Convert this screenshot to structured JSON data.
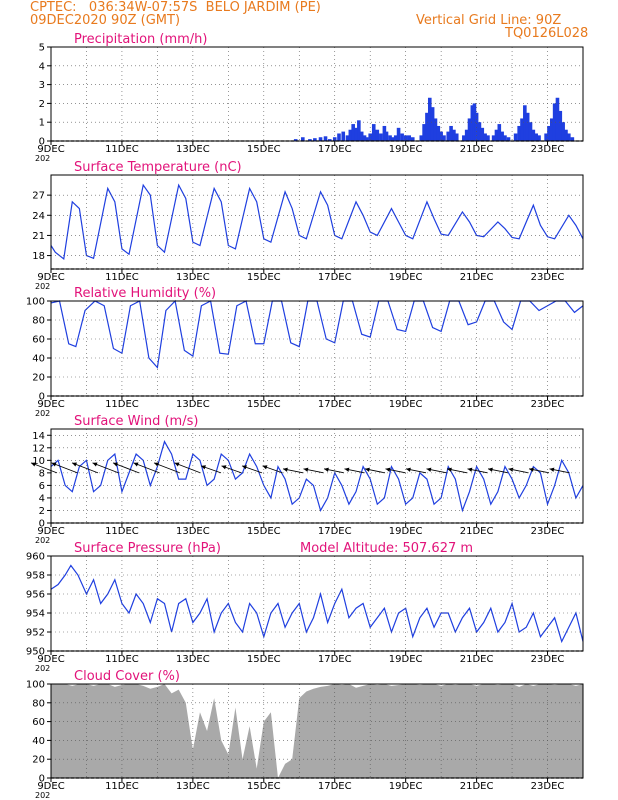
{
  "header": {
    "line1_left": "CPTEC:   036:34W-07:57S  BELO JARDIM (PE)",
    "line2_left": "09DEC2020 90Z (GMT)",
    "line1_right": "Vertical Grid Line: 90Z",
    "line2_right": "TQ0126L028"
  },
  "colors": {
    "header": "#e87a1e",
    "title": "#e2137a",
    "line": "#1f3fe0",
    "bar": "#1f3fe0",
    "cloud": "#a9a9a9"
  },
  "x_labels": [
    "9DEC",
    "11DEC",
    "13DEC",
    "15DEC",
    "17DEC",
    "19DEC",
    "21DEC",
    "23DEC"
  ],
  "x_stub": "202",
  "chart_data": [
    {
      "id": "precip",
      "type": "bar",
      "title": "Precipitation  (mm/h)",
      "ylim": [
        0,
        5
      ],
      "yticks": [
        0,
        1,
        2,
        3,
        4,
        5
      ],
      "xlim": [
        0,
        7.5
      ],
      "points": [
        [
          3.45,
          0.1
        ],
        [
          3.55,
          0.2
        ],
        [
          3.65,
          0.1
        ],
        [
          3.72,
          0.15
        ],
        [
          3.8,
          0.2
        ],
        [
          3.87,
          0.25
        ],
        [
          3.93,
          0.1
        ],
        [
          4.0,
          0.2
        ],
        [
          4.06,
          0.4
        ],
        [
          4.12,
          0.5
        ],
        [
          4.18,
          0.3
        ],
        [
          4.22,
          0.6
        ],
        [
          4.26,
          0.9
        ],
        [
          4.3,
          0.7
        ],
        [
          4.34,
          1.1
        ],
        [
          4.38,
          0.5
        ],
        [
          4.42,
          0.3
        ],
        [
          4.45,
          0.2
        ],
        [
          4.5,
          0.4
        ],
        [
          4.55,
          0.9
        ],
        [
          4.6,
          0.6
        ],
        [
          4.65,
          0.4
        ],
        [
          4.7,
          0.8
        ],
        [
          4.73,
          0.5
        ],
        [
          4.78,
          0.3
        ],
        [
          4.82,
          0.2
        ],
        [
          4.86,
          0.3
        ],
        [
          4.9,
          0.7
        ],
        [
          4.95,
          0.4
        ],
        [
          5.0,
          0.3
        ],
        [
          5.05,
          0.3
        ],
        [
          5.1,
          0.2
        ],
        [
          5.22,
          0.3
        ],
        [
          5.26,
          0.9
        ],
        [
          5.3,
          1.5
        ],
        [
          5.34,
          2.3
        ],
        [
          5.38,
          1.8
        ],
        [
          5.42,
          1.2
        ],
        [
          5.46,
          0.8
        ],
        [
          5.5,
          0.5
        ],
        [
          5.54,
          0.3
        ],
        [
          5.6,
          0.5
        ],
        [
          5.64,
          0.8
        ],
        [
          5.68,
          0.6
        ],
        [
          5.72,
          0.4
        ],
        [
          5.82,
          0.3
        ],
        [
          5.86,
          0.6
        ],
        [
          5.9,
          1.2
        ],
        [
          5.94,
          1.9
        ],
        [
          5.97,
          2.0
        ],
        [
          6.0,
          1.5
        ],
        [
          6.04,
          1.0
        ],
        [
          6.08,
          0.7
        ],
        [
          6.12,
          0.4
        ],
        [
          6.16,
          0.3
        ],
        [
          6.24,
          0.3
        ],
        [
          6.28,
          0.6
        ],
        [
          6.32,
          0.9
        ],
        [
          6.36,
          0.5
        ],
        [
          6.4,
          0.3
        ],
        [
          6.45,
          0.2
        ],
        [
          6.55,
          0.4
        ],
        [
          6.6,
          0.8
        ],
        [
          6.64,
          1.2
        ],
        [
          6.68,
          1.9
        ],
        [
          6.72,
          1.5
        ],
        [
          6.76,
          1.0
        ],
        [
          6.8,
          0.6
        ],
        [
          6.84,
          0.4
        ],
        [
          6.88,
          0.3
        ],
        [
          6.98,
          0.4
        ],
        [
          7.02,
          0.8
        ],
        [
          7.06,
          1.2
        ],
        [
          7.1,
          2.0
        ],
        [
          7.14,
          2.3
        ],
        [
          7.18,
          1.6
        ],
        [
          7.22,
          1.0
        ],
        [
          7.26,
          0.6
        ],
        [
          7.3,
          0.4
        ],
        [
          7.35,
          0.2
        ]
      ]
    },
    {
      "id": "temp",
      "type": "line",
      "title": "Surface Temperature (nC)",
      "ylim": [
        16,
        30
      ],
      "yticks": [
        18,
        21,
        24,
        27
      ],
      "xlim": [
        0,
        7.5
      ],
      "x": [
        0,
        0.06,
        0.18,
        0.3,
        0.4,
        0.5,
        0.6,
        0.8,
        0.9,
        1.0,
        1.1,
        1.3,
        1.4,
        1.5,
        1.6,
        1.8,
        1.9,
        2.0,
        2.1,
        2.3,
        2.4,
        2.5,
        2.6,
        2.8,
        2.9,
        3.0,
        3.1,
        3.3,
        3.4,
        3.5,
        3.6,
        3.8,
        3.9,
        4.0,
        4.1,
        4.3,
        4.4,
        4.5,
        4.6,
        4.8,
        4.9,
        5.0,
        5.1,
        5.3,
        5.4,
        5.5,
        5.6,
        5.8,
        5.9,
        6.0,
        6.1,
        6.3,
        6.4,
        6.5,
        6.6,
        6.8,
        6.9,
        7.0,
        7.1,
        7.3,
        7.4,
        7.5
      ],
      "y": [
        19.5,
        18.5,
        17.5,
        26,
        25,
        18,
        17.6,
        28,
        26,
        19,
        18.2,
        28.5,
        27,
        19.5,
        18.5,
        28.5,
        26.5,
        20,
        19.5,
        28,
        26,
        19.5,
        19,
        28,
        26,
        20.5,
        20,
        27.5,
        25,
        21,
        20.5,
        27.5,
        25.5,
        21,
        20.5,
        26,
        24,
        21.5,
        21,
        25,
        23,
        21,
        20.5,
        26,
        23.5,
        21.2,
        21,
        24.5,
        23,
        21,
        20.8,
        23,
        22,
        20.7,
        20.5,
        25.5,
        22.5,
        20.8,
        20.5,
        24,
        22.5,
        20.5
      ]
    },
    {
      "id": "rh",
      "type": "line",
      "title": "Relative Humidity  (%)",
      "ylim": [
        0,
        100
      ],
      "yticks": [
        0,
        20,
        40,
        60,
        80,
        100
      ],
      "xlim": [
        0,
        7.5
      ],
      "x": [
        0,
        0.12,
        0.25,
        0.35,
        0.48,
        0.62,
        0.75,
        0.88,
        1.0,
        1.12,
        1.25,
        1.38,
        1.5,
        1.62,
        1.75,
        1.88,
        2.0,
        2.12,
        2.25,
        2.38,
        2.5,
        2.62,
        2.75,
        2.88,
        3.0,
        3.12,
        3.25,
        3.38,
        3.5,
        3.62,
        3.75,
        3.88,
        4.0,
        4.12,
        4.25,
        4.38,
        4.5,
        4.62,
        4.75,
        4.88,
        5.0,
        5.12,
        5.25,
        5.38,
        5.5,
        5.62,
        5.75,
        5.88,
        6.0,
        6.12,
        6.25,
        6.38,
        6.5,
        6.62,
        6.75,
        6.88,
        7.0,
        7.12,
        7.25,
        7.38,
        7.5
      ],
      "y": [
        98,
        100,
        55,
        52,
        90,
        100,
        95,
        50,
        45,
        95,
        100,
        40,
        30,
        90,
        100,
        48,
        42,
        95,
        100,
        45,
        44,
        95,
        100,
        55,
        55,
        100,
        100,
        56,
        52,
        100,
        100,
        60,
        56,
        100,
        100,
        65,
        62,
        100,
        100,
        70,
        68,
        100,
        100,
        72,
        68,
        100,
        100,
        75,
        78,
        100,
        100,
        78,
        70,
        100,
        100,
        90,
        95,
        100,
        100,
        88,
        95
      ]
    },
    {
      "id": "wind",
      "type": "line",
      "title": "Surface Wind  (m/s)",
      "ylim": [
        0,
        15
      ],
      "yticks": [
        0,
        2,
        4,
        6,
        8,
        10,
        12,
        14
      ],
      "xlim": [
        0,
        7.5
      ],
      "x": [
        0,
        0.1,
        0.2,
        0.3,
        0.4,
        0.5,
        0.6,
        0.7,
        0.8,
        0.9,
        1.0,
        1.1,
        1.2,
        1.3,
        1.4,
        1.5,
        1.6,
        1.7,
        1.8,
        1.9,
        2.0,
        2.1,
        2.2,
        2.3,
        2.4,
        2.5,
        2.6,
        2.7,
        2.8,
        2.9,
        3.0,
        3.1,
        3.2,
        3.3,
        3.4,
        3.5,
        3.6,
        3.7,
        3.8,
        3.9,
        4.0,
        4.1,
        4.2,
        4.3,
        4.4,
        4.5,
        4.6,
        4.7,
        4.8,
        4.9,
        5.0,
        5.1,
        5.2,
        5.3,
        5.4,
        5.5,
        5.6,
        5.7,
        5.8,
        5.9,
        6.0,
        6.1,
        6.2,
        6.3,
        6.4,
        6.5,
        6.6,
        6.7,
        6.8,
        6.9,
        7.0,
        7.1,
        7.2,
        7.3,
        7.4,
        7.5
      ],
      "y": [
        9,
        10,
        6,
        5,
        9,
        10,
        5,
        6,
        10,
        11,
        5,
        8,
        11,
        10,
        6,
        9,
        13,
        11,
        7,
        7,
        11,
        10,
        6,
        7,
        11,
        10,
        7,
        8,
        11,
        9,
        6,
        4,
        9,
        7,
        3,
        4,
        7,
        6,
        2,
        4,
        8,
        6,
        3,
        5,
        9,
        7,
        3,
        4,
        9,
        7,
        3,
        4,
        8,
        7,
        3,
        4,
        9,
        7,
        2,
        5,
        9,
        7,
        3,
        5,
        9,
        7,
        4,
        6,
        9,
        8,
        3,
        6,
        10,
        8,
        4,
        6
      ]
    },
    {
      "id": "press",
      "type": "line",
      "title": "Surface Pressure (hPa)",
      "extra": "Model Altitude: 507.627 m",
      "ylim": [
        950,
        960
      ],
      "yticks": [
        950,
        952,
        954,
        956,
        958,
        960
      ],
      "xlim": [
        0,
        7.5
      ],
      "x": [
        0,
        0.1,
        0.2,
        0.28,
        0.38,
        0.5,
        0.6,
        0.7,
        0.8,
        0.9,
        1.0,
        1.1,
        1.2,
        1.3,
        1.4,
        1.5,
        1.6,
        1.7,
        1.8,
        1.9,
        2.0,
        2.1,
        2.2,
        2.3,
        2.4,
        2.5,
        2.6,
        2.7,
        2.8,
        2.9,
        3.0,
        3.1,
        3.2,
        3.3,
        3.4,
        3.5,
        3.6,
        3.7,
        3.8,
        3.9,
        4.0,
        4.1,
        4.2,
        4.3,
        4.4,
        4.5,
        4.6,
        4.7,
        4.8,
        4.9,
        5.0,
        5.1,
        5.2,
        5.3,
        5.4,
        5.5,
        5.6,
        5.7,
        5.8,
        5.9,
        6.0,
        6.1,
        6.2,
        6.3,
        6.4,
        6.5,
        6.6,
        6.7,
        6.8,
        6.9,
        7.0,
        7.1,
        7.2,
        7.3,
        7.4,
        7.5
      ],
      "y": [
        956.5,
        957,
        958,
        959,
        958,
        956,
        957.5,
        955,
        956,
        957.5,
        955,
        954,
        956,
        955,
        953,
        955.5,
        955,
        952,
        955,
        955.5,
        953,
        954,
        955.5,
        952,
        954,
        955,
        953,
        952,
        955,
        954,
        951.5,
        954,
        955,
        952.5,
        954,
        955,
        952,
        953.5,
        956,
        953,
        955,
        956.5,
        953.5,
        954.5,
        955,
        952.5,
        953.5,
        954.5,
        952,
        954,
        954.5,
        951.5,
        953.5,
        954.5,
        952.5,
        954,
        954,
        952,
        953.5,
        954.5,
        952,
        953,
        954.5,
        952,
        953,
        955,
        952,
        952.5,
        954,
        951.5,
        952.5,
        953.5,
        951,
        952.5,
        954,
        951
      ]
    },
    {
      "id": "cloud",
      "type": "area",
      "title": "Cloud Cover  (%)",
      "ylim": [
        0,
        100
      ],
      "yticks": [
        0,
        20,
        40,
        60,
        80,
        100
      ],
      "xlim": [
        0,
        7.5
      ],
      "x": [
        0,
        0.1,
        0.2,
        0.3,
        0.4,
        0.5,
        0.6,
        0.7,
        0.8,
        0.9,
        1.0,
        1.1,
        1.2,
        1.3,
        1.4,
        1.5,
        1.6,
        1.7,
        1.8,
        1.9,
        2.0,
        2.1,
        2.2,
        2.3,
        2.4,
        2.5,
        2.6,
        2.7,
        2.8,
        2.9,
        3.0,
        3.1,
        3.2,
        3.3,
        3.4,
        3.5,
        3.6,
        3.7,
        3.8,
        3.9,
        4.0,
        4.1,
        4.2,
        4.3,
        4.4,
        4.5,
        4.6,
        4.7,
        4.8,
        4.9,
        5.0,
        5.1,
        5.2,
        5.3,
        5.4,
        5.5,
        5.6,
        5.7,
        5.8,
        5.9,
        6.0,
        6.1,
        6.2,
        6.3,
        6.4,
        6.5,
        6.6,
        6.7,
        6.8,
        6.9,
        7.0,
        7.1,
        7.2,
        7.3,
        7.4,
        7.5
      ],
      "y": [
        100,
        100,
        100,
        98,
        100,
        100,
        98,
        100,
        100,
        97,
        99,
        100,
        100,
        98,
        95,
        97,
        100,
        90,
        94,
        80,
        30,
        70,
        50,
        85,
        40,
        25,
        75,
        20,
        55,
        10,
        60,
        70,
        0,
        15,
        20,
        85,
        92,
        95,
        97,
        98,
        100,
        99,
        100,
        96,
        98,
        100,
        99,
        100,
        98,
        99,
        100,
        100,
        99,
        100,
        100,
        98,
        100,
        99,
        100,
        100,
        98,
        100,
        100,
        99,
        100,
        100,
        97,
        100,
        98,
        100,
        100,
        99,
        100,
        100,
        98,
        100
      ]
    }
  ]
}
